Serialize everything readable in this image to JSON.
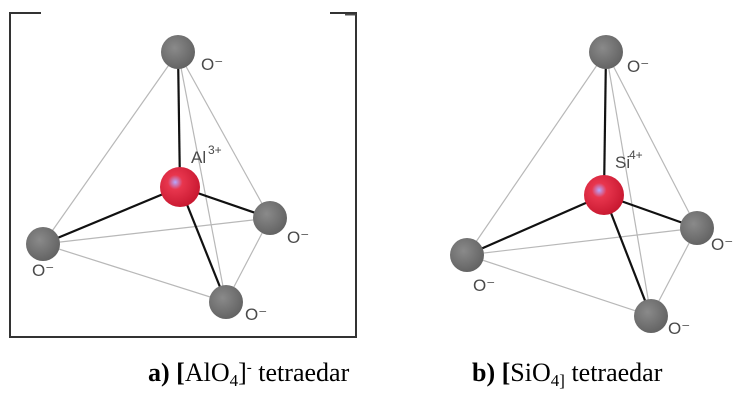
{
  "bracket_charge": "−",
  "colors": {
    "center_atom": "#e0243c",
    "oxygen_atom": "#6f6f6f",
    "bond": "#111111",
    "edge": "#b8b8b8",
    "bracket": "#333333"
  },
  "tetrahedra": [
    {
      "center_symbol": "Al",
      "center_charge": "3+",
      "oxygen_labels": [
        "O⁻",
        "O⁻",
        "O⁻",
        "O⁻"
      ],
      "caption": {
        "letter": "a)",
        "open": "[",
        "formula": "AlO",
        "subscript": "4",
        "close": "]",
        "charge": "-",
        "suffix": " tetraedar"
      }
    },
    {
      "center_symbol": "Si",
      "center_charge": "4+",
      "oxygen_labels": [
        "O⁻",
        "O⁻",
        "O⁻",
        "O⁻"
      ],
      "caption": {
        "letter": "b)",
        "open": "[",
        "formula": "SiO",
        "subscript": "4]",
        "close": "",
        "charge": "",
        "suffix": " tetraedar"
      }
    }
  ]
}
